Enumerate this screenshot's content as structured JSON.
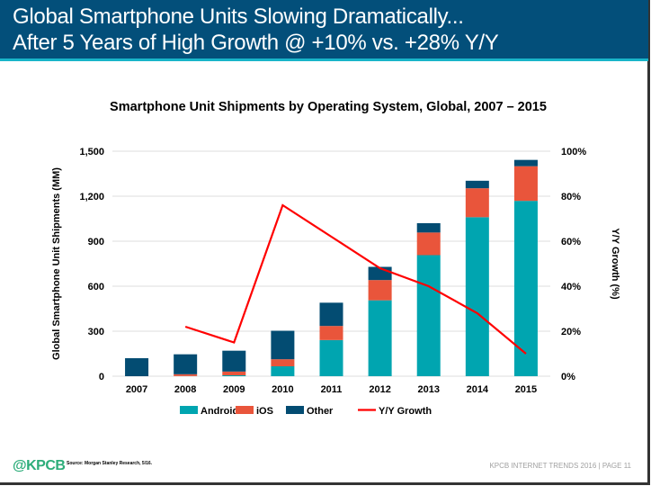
{
  "header": {
    "line1": "Global Smartphone Units Slowing Dramatically...",
    "line2": "After 5 Years of High Growth @ +10% vs. +28% Y/Y"
  },
  "chart_data": {
    "type": "bar",
    "title": "Smartphone Unit Shipments by Operating System, Global, 2007 – 2015",
    "ylabel": "Global Smartphone Unit Shipments (MM)",
    "y2label": "Y/Y Growth (%)",
    "ylim": [
      0,
      1500
    ],
    "y2lim": [
      0,
      100
    ],
    "yticks": [
      "0",
      "300",
      "600",
      "900",
      "1,200",
      "1,500"
    ],
    "y2ticks": [
      "0%",
      "20%",
      "40%",
      "60%",
      "80%",
      "100%"
    ],
    "categories": [
      "2007",
      "2008",
      "2009",
      "2010",
      "2011",
      "2012",
      "2013",
      "2014",
      "2015"
    ],
    "stacked": true,
    "grid": true,
    "legend_position": "bottom",
    "series": [
      {
        "name": "Android",
        "color": "#00a5b0",
        "values": [
          0,
          1,
          6,
          66,
          241,
          506,
          807,
          1060,
          1169
        ]
      },
      {
        "name": "iOS",
        "color": "#e9553b",
        "values": [
          0,
          12,
          25,
          47,
          94,
          135,
          151,
          193,
          231
        ]
      },
      {
        "name": "Other",
        "color": "#034c72",
        "values": [
          120,
          133,
          139,
          190,
          155,
          88,
          62,
          50,
          42
        ]
      }
    ],
    "line_series": {
      "name": "Y/Y Growth",
      "color": "#ff0000",
      "axis": "right",
      "values": [
        null,
        22,
        15,
        76,
        62,
        48,
        40,
        28,
        10
      ]
    }
  },
  "footer": {
    "logo": "@KPCB",
    "source": "Source: Morgan Stanley Research, 5/16.",
    "right": "KPCB INTERNET TRENDS 2016  |  PAGE 11"
  }
}
